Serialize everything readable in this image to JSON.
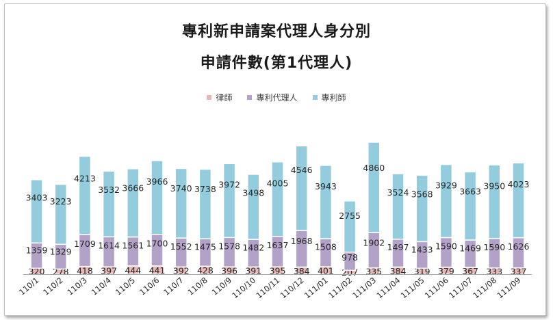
{
  "chart_data": {
    "type": "bar",
    "stacked": true,
    "title": "專利新申請案代理人身分別",
    "subtitle": "申請件數(第1代理人)",
    "categories": [
      "110/1",
      "110/2",
      "110/3",
      "110/4",
      "110/5",
      "110/6",
      "110/7",
      "110/8",
      "110/9",
      "110/10",
      "110/11",
      "110/12",
      "111/01",
      "111/02",
      "111/03",
      "111/04",
      "111/05",
      "111/06",
      "111/07",
      "111/08",
      "111/09"
    ],
    "series": [
      {
        "name": "律師",
        "color": "#e6b9b8",
        "values": [
          320,
          278,
          418,
          397,
          444,
          441,
          392,
          428,
          396,
          391,
          395,
          384,
          401,
          207,
          335,
          384,
          319,
          379,
          367,
          333,
          337
        ]
      },
      {
        "name": "專利代理人",
        "color": "#b3a2c7",
        "values": [
          1359,
          1329,
          1709,
          1614,
          1561,
          1700,
          1552,
          1475,
          1578,
          1482,
          1637,
          1968,
          1508,
          978,
          1902,
          1497,
          1433,
          1590,
          1469,
          1590,
          1626
        ]
      },
      {
        "name": "專利師",
        "color": "#93cddd",
        "values": [
          3403,
          3223,
          4213,
          3532,
          3666,
          3966,
          3740,
          3738,
          3972,
          3498,
          4005,
          4546,
          3943,
          2755,
          4860,
          3524,
          3568,
          3929,
          3663,
          3950,
          4023
        ]
      }
    ],
    "legend_position": "top-center",
    "grid": false
  }
}
